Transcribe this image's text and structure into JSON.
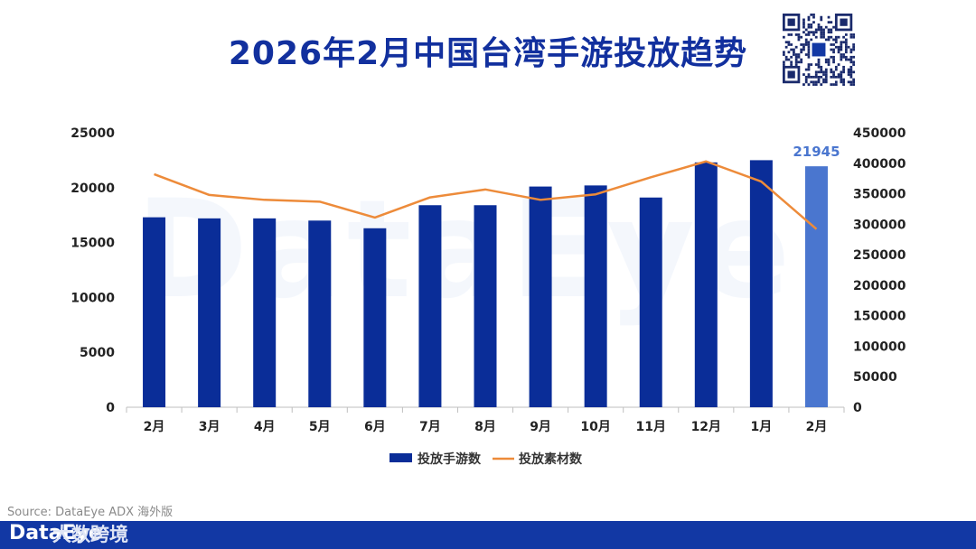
{
  "page": {
    "title": "2026年2月中国台湾手游投放趋势",
    "source": "Source: DataEye ADX 海外版",
    "footer_logo": "DataEye",
    "footer_cn": "大数跨境",
    "watermark": "DataEye"
  },
  "colors": {
    "bar": "#0a2d98",
    "bar_highlight": "#4a76cf",
    "line": "#ed8b3a",
    "title": "#12309e",
    "footer": "#1238a4"
  },
  "chart_data": {
    "type": "bar",
    "categories": [
      "2月",
      "3月",
      "4月",
      "5月",
      "6月",
      "7月",
      "8月",
      "9月",
      "10月",
      "11月",
      "12月",
      "1月",
      "2月"
    ],
    "series": [
      {
        "name": "投放手游数",
        "type": "bar",
        "axis": "left",
        "values": [
          17300,
          17200,
          17200,
          17000,
          16300,
          18400,
          18400,
          20100,
          20200,
          19100,
          22300,
          22500,
          21945
        ]
      },
      {
        "name": "投放素材数",
        "type": "line",
        "axis": "right",
        "values": [
          382000,
          348000,
          340000,
          337000,
          311000,
          344000,
          357000,
          340000,
          349000,
          377000,
          403000,
          370000,
          292000
        ]
      }
    ],
    "data_labels": [
      {
        "index": 12,
        "series": 0,
        "text": "21945"
      }
    ],
    "ylim_left": [
      0,
      25000
    ],
    "ylim_right": [
      0,
      450000
    ],
    "yticks_left": [
      "0",
      "5000",
      "10000",
      "15000",
      "20000",
      "25000"
    ],
    "yticks_right": [
      "0",
      "50000",
      "100000",
      "150000",
      "200000",
      "250000",
      "300000",
      "350000",
      "400000",
      "450000"
    ],
    "highlight_index": 12,
    "grid": false,
    "legend_position": "bottom-center"
  }
}
